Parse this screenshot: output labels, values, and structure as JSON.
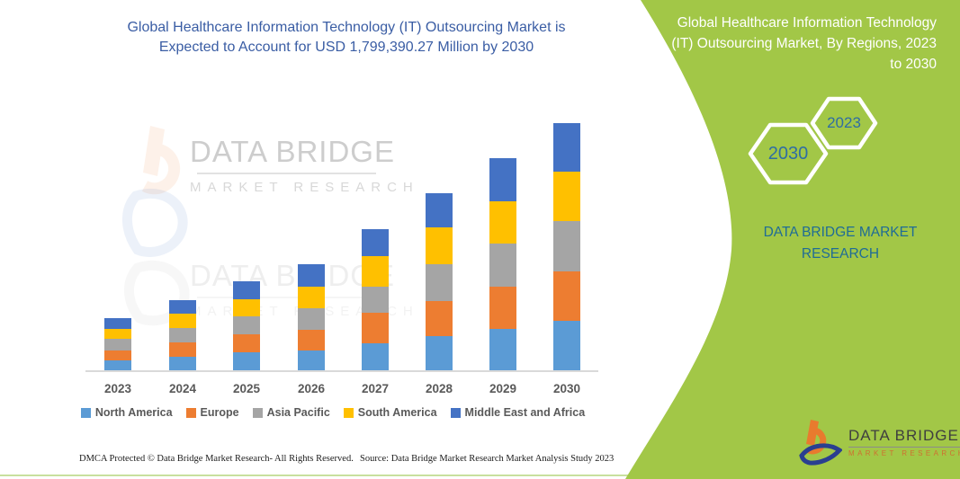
{
  "page": {
    "left_title": "Global Healthcare Information Technology (IT) Outsourcing Market is Expected to Account for USD 1,799,390.27 Million by 2030",
    "footer_left": "DMCA Protected © Data Bridge Market Research-  All Rights Reserved.",
    "footer_right": "Source: Data Bridge Market Research  Market Analysis Study 2023"
  },
  "watermark": {
    "line1": "DATA BRIDGE",
    "line2": "MARKET RESEARCH"
  },
  "right_panel": {
    "bg_color": "#a2c747",
    "title": "Global Healthcare Information Technology (IT) Outsourcing Market, By Regions, 2023 to 2030",
    "hexagons": [
      {
        "label": "2023"
      },
      {
        "label": "2030"
      }
    ],
    "brand_line1": "DATA BRIDGE MARKET",
    "brand_line2": "RESEARCH",
    "logo_name": "DATA BRIDGE",
    "logo_sub": "MARKET RESEARCH"
  },
  "chart_data": {
    "type": "bar",
    "stacked": true,
    "title": "Global Healthcare Information Technology (IT) Outsourcing Market is Expected to Account for USD 1,799,390.27 Million by 2030",
    "unit": "USD Million",
    "stated_2030_total_musd": 1799390.27,
    "categories": [
      "2023",
      "2024",
      "2025",
      "2026",
      "2027",
      "2028",
      "2029",
      "2030"
    ],
    "series": [
      {
        "name": "North America",
        "color": "#5B9BD5",
        "values": [
          76300,
          104300,
          135000,
          148000,
          199500,
          254300,
          308400,
          362500
        ]
      },
      {
        "name": "Europe",
        "color": "#ED7D31",
        "values": [
          76300,
          102400,
          130400,
          151900,
          224300,
          256200,
          306400,
          361200
        ]
      },
      {
        "name": "Asia Pacific",
        "color": "#A5A5A5",
        "values": [
          82800,
          108900,
          130400,
          156500,
          191000,
          265300,
          308400,
          362500
        ]
      },
      {
        "name": "South America",
        "color": "#FFC000",
        "values": [
          73700,
          102400,
          125800,
          156500,
          221700,
          267300,
          311000,
          363100
        ]
      },
      {
        "name": "Middle East and Africa",
        "color": "#4472C4",
        "values": [
          78200,
          97800,
          130400,
          164900,
          195600,
          245100,
          312900,
          350100
        ]
      }
    ],
    "ylim": [
      0,
      1850000
    ],
    "grid": false,
    "y_axis_shown": false,
    "legend_position": "bottom"
  }
}
